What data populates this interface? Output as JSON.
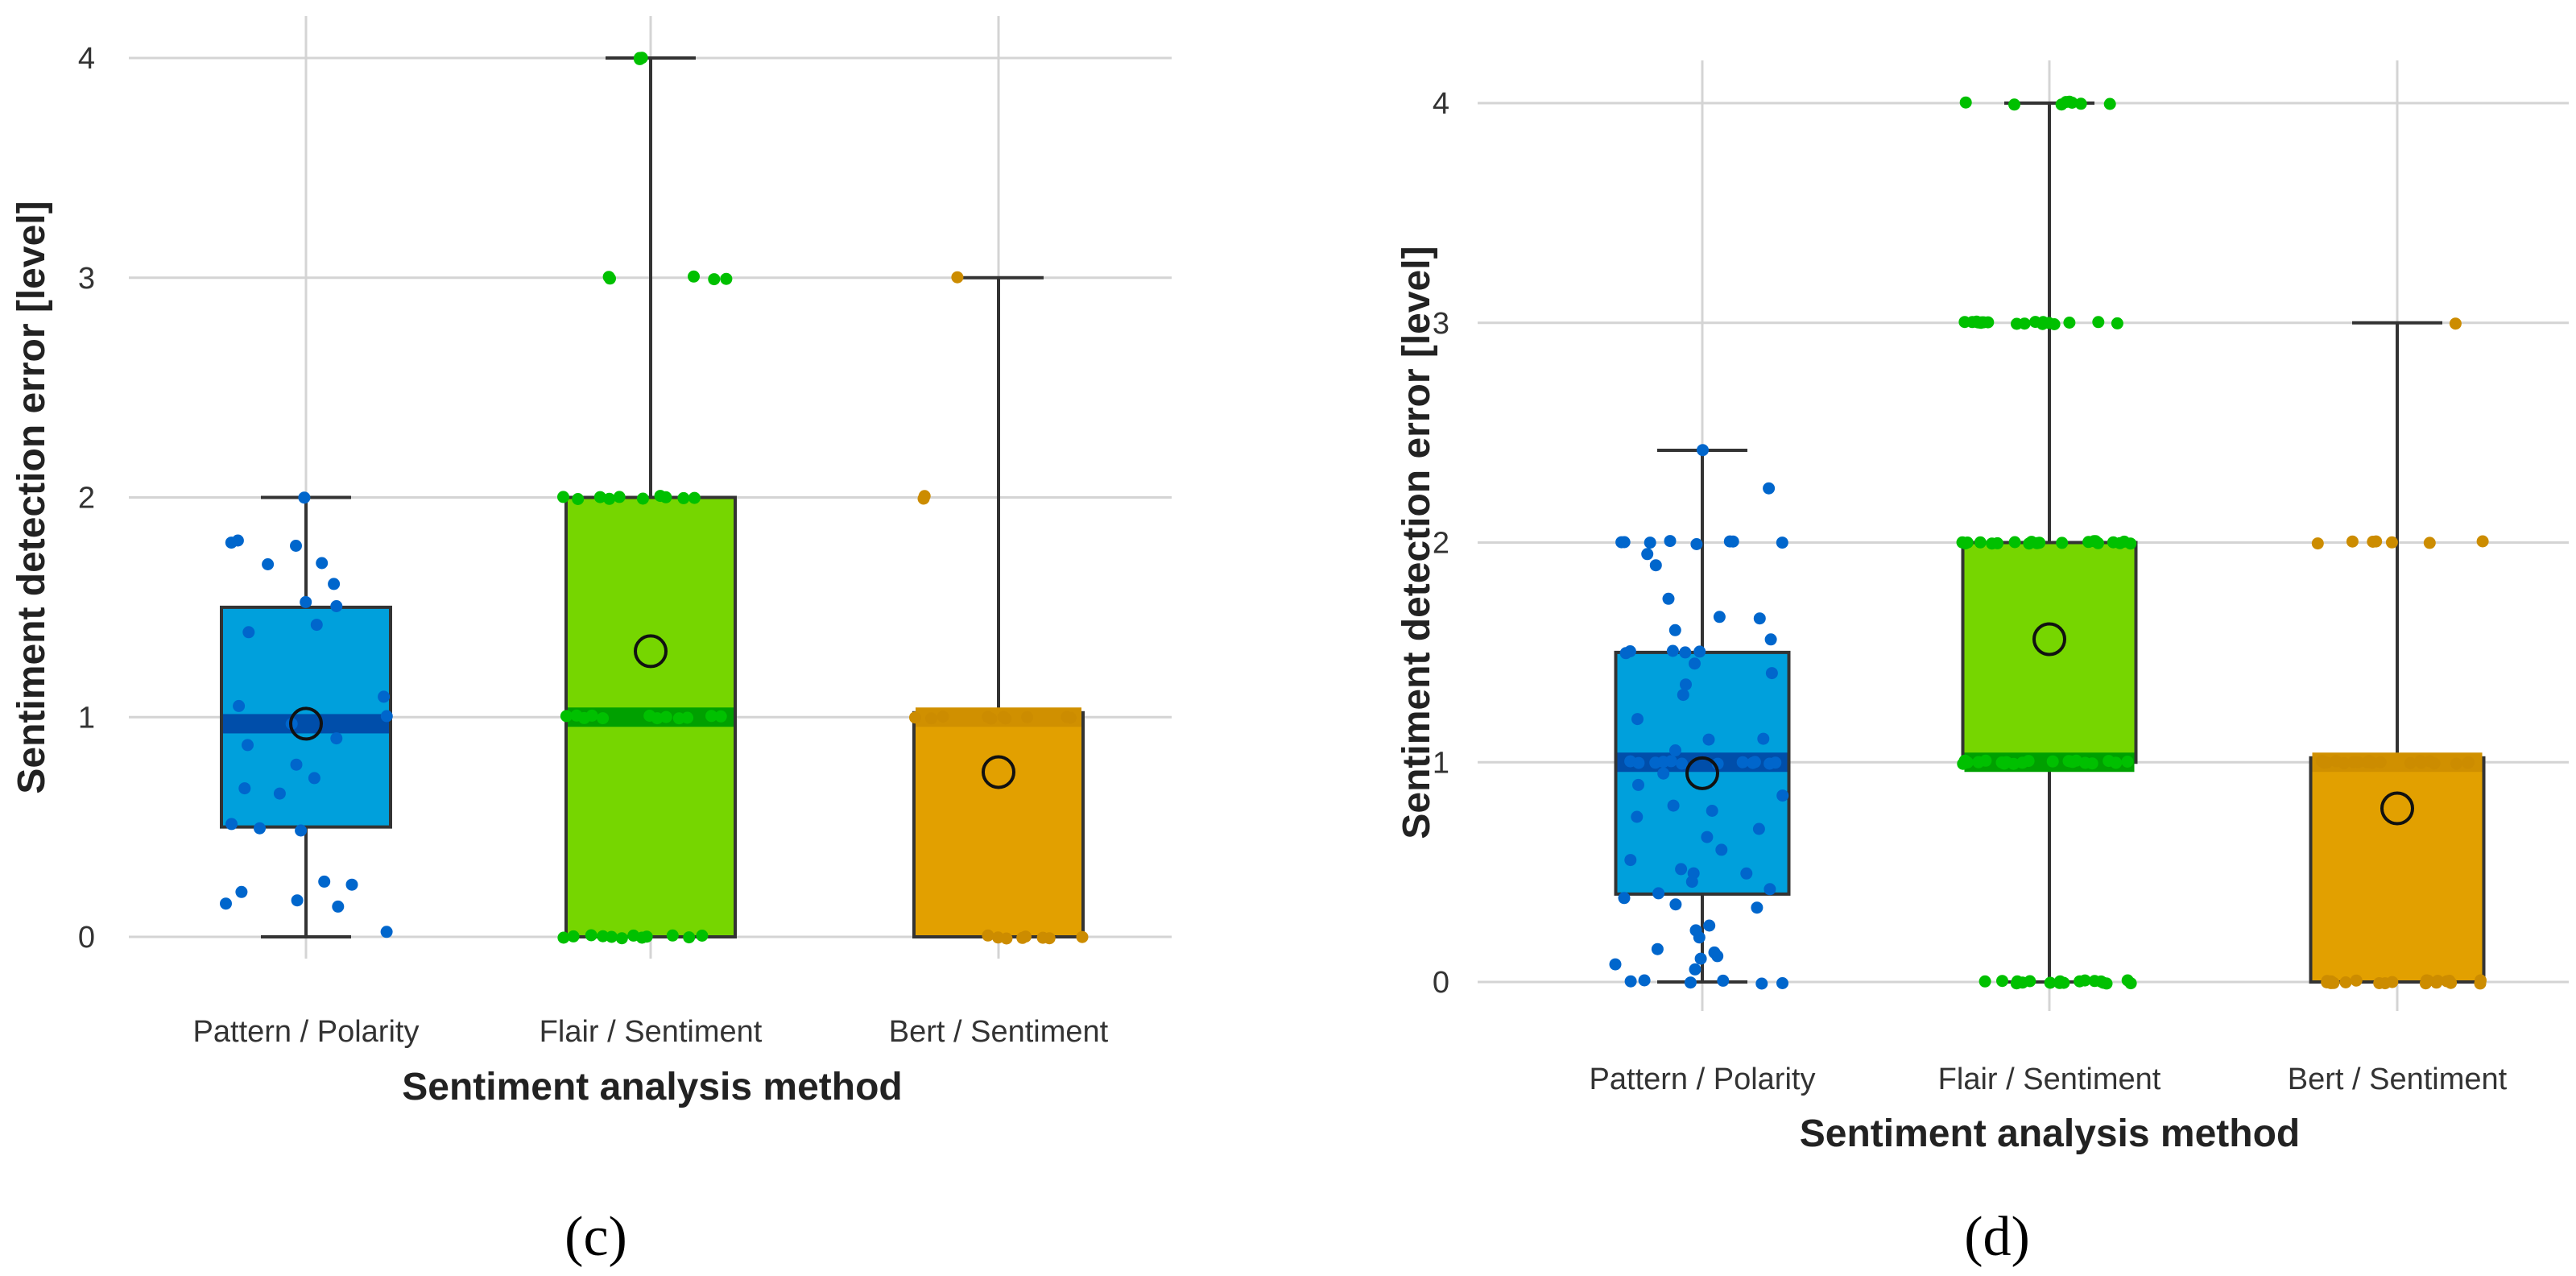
{
  "figure": {
    "label_c": "(c)",
    "label_d": "(d)"
  },
  "colors": {
    "pattern": "#00a0dc",
    "flair": "#76d600",
    "bert": "#e2a000",
    "pattern_dot": "#0066cc",
    "flair_dot": "#00c000",
    "bert_dot": "#cc8c00",
    "pattern_median": "#004eaa",
    "flair_median": "#00a000",
    "bert_median": "#d09000"
  },
  "chart_data": [
    {
      "panel": "c",
      "type": "box",
      "title": "",
      "xlabel": "Sentiment analysis method",
      "ylabel": "Sentiment detection error [level]",
      "ylim": [
        -0.15,
        4.2
      ],
      "yticks": [
        "0",
        "1",
        "2",
        "3",
        "4"
      ],
      "categories": [
        "Pattern / Polarity",
        "Flair / Sentiment",
        "Bert / Sentiment"
      ],
      "boxes": [
        {
          "name": "Pattern / Polarity",
          "min": 0,
          "q1": 0.5,
          "median": 0.97,
          "q3": 1.5,
          "max": 2,
          "mean": 0.97,
          "points": [
            2,
            1.8,
            1.78,
            1.8,
            1.7,
            1.7,
            1.6,
            1.52,
            1.5,
            1.42,
            1.38,
            1.1,
            1.05,
            1.0,
            0.97,
            0.9,
            0.88,
            0.78,
            0.72,
            0.68,
            0.65,
            0.52,
            0.5,
            0.48,
            0.25,
            0.24,
            0.2,
            0.16,
            0.15,
            0.14,
            0.02
          ]
        },
        {
          "name": "Flair / Sentiment",
          "min": 0,
          "q1": 0,
          "median": 1,
          "q3": 2,
          "max": 4,
          "mean": 1.3,
          "points": [
            4,
            4,
            4,
            3,
            3,
            3,
            3,
            3,
            2,
            2,
            2,
            2,
            2,
            2,
            2,
            2,
            2,
            2,
            1,
            1,
            1,
            1,
            1,
            1,
            1,
            1,
            1,
            1,
            1,
            1,
            0,
            0,
            0,
            0,
            0,
            0,
            0,
            0,
            0,
            0,
            0,
            0
          ]
        },
        {
          "name": "Bert / Sentiment",
          "min": 0,
          "q1": 0,
          "median": 1,
          "q3": 1.02,
          "max": 3,
          "mean": 0.75,
          "points": [
            3,
            2,
            2,
            1,
            1,
            1,
            1,
            1,
            1,
            1,
            1,
            1,
            1,
            0,
            0,
            0,
            0,
            0,
            0,
            0,
            0
          ]
        }
      ]
    },
    {
      "panel": "d",
      "type": "box",
      "title": "",
      "xlabel": "Sentiment analysis method",
      "ylabel": "Sentiment detection error [level]",
      "ylim": [
        -0.1,
        4.2
      ],
      "yticks": [
        "0",
        "1",
        "2",
        "3",
        "4"
      ],
      "categories": [
        "Pattern / Polarity",
        "Flair / Sentiment",
        "Bert / Sentiment"
      ],
      "boxes": [
        {
          "name": "Pattern / Polarity",
          "min": 0,
          "q1": 0.4,
          "median": 1.0,
          "q3": 1.5,
          "max": 2.42,
          "mean": 0.95,
          "points": [
            2.42,
            2.25,
            2,
            2,
            2,
            2,
            2,
            2,
            2,
            2,
            1.95,
            1.9,
            1.75,
            1.66,
            1.65,
            1.6,
            1.56,
            1.5,
            1.5,
            1.5,
            1.5,
            1.5,
            1.45,
            1.4,
            1.35,
            1.3,
            1.2,
            1.1,
            1.1,
            1.05,
            1,
            1,
            1,
            1,
            1,
            1,
            1,
            1,
            1,
            1,
            1,
            1,
            0.95,
            0.9,
            0.85,
            0.8,
            0.78,
            0.75,
            0.7,
            0.66,
            0.6,
            0.55,
            0.52,
            0.5,
            0.5,
            0.45,
            0.42,
            0.4,
            0.38,
            0.36,
            0.34,
            0.25,
            0.23,
            0.2,
            0.15,
            0.13,
            0.12,
            0.1,
            0.08,
            0.05,
            0,
            0,
            0,
            0,
            0,
            0
          ]
        },
        {
          "name": "Flair / Sentiment",
          "min": 0,
          "q1": 1,
          "median": 1,
          "q3": 2,
          "max": 4,
          "mean": 1.56,
          "points": [
            4,
            4,
            4,
            4,
            4,
            4,
            4,
            4,
            3,
            3,
            3,
            3,
            3,
            3,
            3,
            3,
            3,
            3,
            3,
            3,
            3,
            3,
            3,
            3,
            3,
            3,
            3,
            3,
            2,
            2,
            2,
            2,
            2,
            2,
            2,
            2,
            2,
            2,
            2,
            2,
            2,
            2,
            2,
            2,
            2,
            2,
            2,
            2,
            1,
            1,
            1,
            1,
            1,
            1,
            1,
            1,
            1,
            1,
            1,
            1,
            1,
            1,
            1,
            1,
            1,
            1,
            1,
            1,
            1,
            1,
            1,
            1,
            0,
            0,
            0,
            0,
            0,
            0,
            0,
            0,
            0,
            0,
            0,
            0,
            0,
            0,
            0,
            0,
            0,
            0
          ]
        },
        {
          "name": "Bert / Sentiment",
          "min": 0,
          "q1": 0,
          "median": 1,
          "q3": 1.02,
          "max": 3,
          "mean": 0.79,
          "points": [
            3,
            2,
            2,
            2,
            2,
            2,
            2,
            2,
            1,
            1,
            1,
            1,
            1,
            1,
            1,
            1,
            1,
            1,
            1,
            1,
            1,
            1,
            1,
            1,
            1,
            1,
            1,
            1,
            0,
            0,
            0,
            0,
            0,
            0,
            0,
            0,
            0,
            0,
            0,
            0,
            0,
            0,
            0,
            0,
            0,
            0,
            0,
            0
          ]
        }
      ]
    }
  ]
}
